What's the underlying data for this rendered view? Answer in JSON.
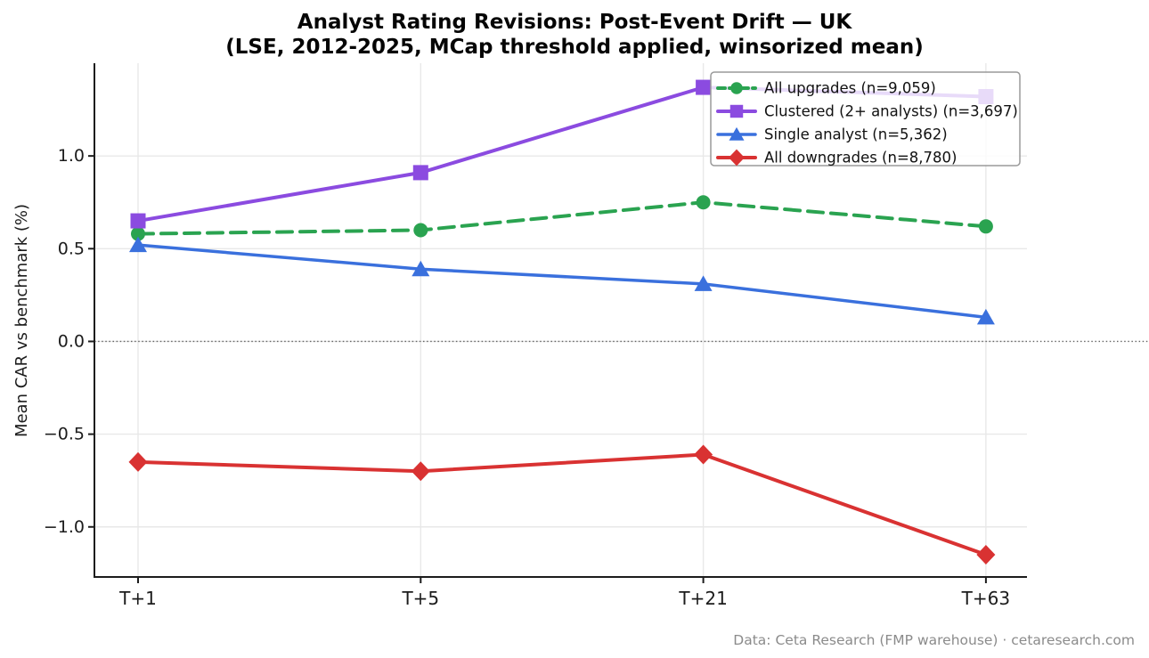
{
  "title": {
    "line1": "Analyst Rating Revisions: Post-Event Drift — UK",
    "line2": "(LSE, 2012-2025, MCap threshold applied, winsorized mean)"
  },
  "footer": {
    "credit": "Data: Ceta Research (FMP warehouse) · cetaresearch.com"
  },
  "chart_data": {
    "type": "line",
    "title": "Analyst Rating Revisions: Post-Event Drift — UK",
    "subtitle": "(LSE, 2012-2025, MCap threshold applied, winsorized mean)",
    "categories": [
      "T+1",
      "T+5",
      "T+21",
      "T+63"
    ],
    "xlabel": "",
    "ylabel": "Mean CAR vs benchmark (%)",
    "ylim": [
      -1.27,
      1.5
    ],
    "yticks": [
      1.0,
      0.5,
      0.0,
      -0.5,
      -1.0
    ],
    "ytick_labels": [
      "1.0",
      "0.5",
      "0.0",
      "−0.5",
      "−1.0"
    ],
    "grid": true,
    "zero_line": true,
    "legend_position": "upper right",
    "series": [
      {
        "name": "All upgrades (n=9,059)",
        "color": "#2aa350",
        "marker": "circle",
        "line_style": "dashed",
        "values": [
          0.58,
          0.6,
          0.75,
          0.62
        ]
      },
      {
        "name": "Clustered (2+ analysts) (n=3,697)",
        "color": "#8b4be0",
        "marker": "square",
        "line_style": "solid",
        "values": [
          0.65,
          0.91,
          1.37,
          1.32
        ]
      },
      {
        "name": "Single analyst (n=5,362)",
        "color": "#3a70dd",
        "marker": "triangle",
        "line_style": "solid",
        "values": [
          0.52,
          0.39,
          0.31,
          0.13
        ]
      },
      {
        "name": "All downgrades (n=8,780)",
        "color": "#d93232",
        "marker": "diamond",
        "line_style": "solid",
        "values": [
          -0.65,
          -0.7,
          -0.61,
          -1.15
        ]
      }
    ]
  }
}
